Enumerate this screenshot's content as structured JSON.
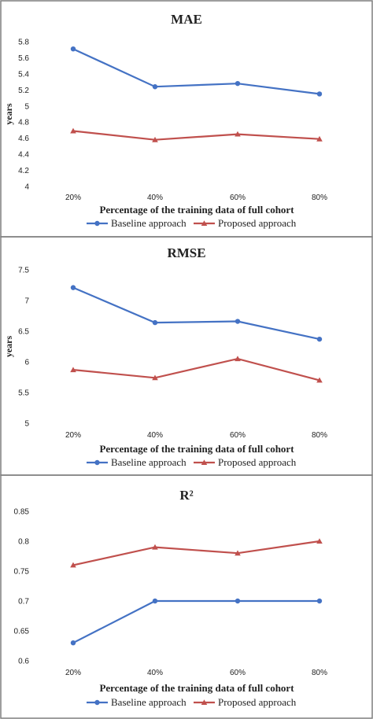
{
  "chart_data": [
    {
      "type": "line",
      "title": "MAE",
      "xlabel": "Percentage of the training data of full cohort",
      "ylabel": "years",
      "categories": [
        "20%",
        "40%",
        "60%",
        "80%"
      ],
      "ylim": [
        4,
        5.8
      ],
      "yticks": [
        "4",
        "4.2",
        "4.4",
        "4.6",
        "4.8",
        "5",
        "5.2",
        "5.4",
        "5.6",
        "5.8"
      ],
      "series": [
        {
          "name": "Baseline approach",
          "values": [
            5.71,
            5.24,
            5.28,
            5.15
          ]
        },
        {
          "name": "Proposed approach",
          "values": [
            4.69,
            4.58,
            4.65,
            4.59
          ]
        }
      ],
      "legend": "bottom",
      "grid": false
    },
    {
      "type": "line",
      "title": "RMSE",
      "xlabel": "Percentage of the training data of full cohort",
      "ylabel": "years",
      "categories": [
        "20%",
        "40%",
        "60%",
        "80%"
      ],
      "ylim": [
        5,
        7.5
      ],
      "yticks": [
        "5",
        "5.5",
        "6",
        "6.5",
        "7",
        "7.5"
      ],
      "series": [
        {
          "name": "Baseline approach",
          "values": [
            7.21,
            6.64,
            6.66,
            6.37
          ]
        },
        {
          "name": "Proposed approach",
          "values": [
            5.87,
            5.74,
            6.05,
            5.7
          ]
        }
      ],
      "legend": "bottom",
      "grid": false
    },
    {
      "type": "line",
      "title": "R²",
      "xlabel": "Percentage of the training data of full cohort",
      "ylabel": "",
      "categories": [
        "20%",
        "40%",
        "60%",
        "80%"
      ],
      "ylim": [
        0.6,
        0.85
      ],
      "yticks": [
        "0.6",
        "0.65",
        "0.7",
        "0.75",
        "0.8",
        "0.85"
      ],
      "series": [
        {
          "name": "Baseline approach",
          "values": [
            0.63,
            0.7,
            0.7,
            0.7
          ]
        },
        {
          "name": "Proposed approach",
          "values": [
            0.76,
            0.79,
            0.78,
            0.8
          ]
        }
      ],
      "legend": "bottom",
      "grid": false
    }
  ],
  "colors": {
    "baseline": "#4472C4",
    "proposed": "#C0504D",
    "border": "#7f7f7f"
  }
}
